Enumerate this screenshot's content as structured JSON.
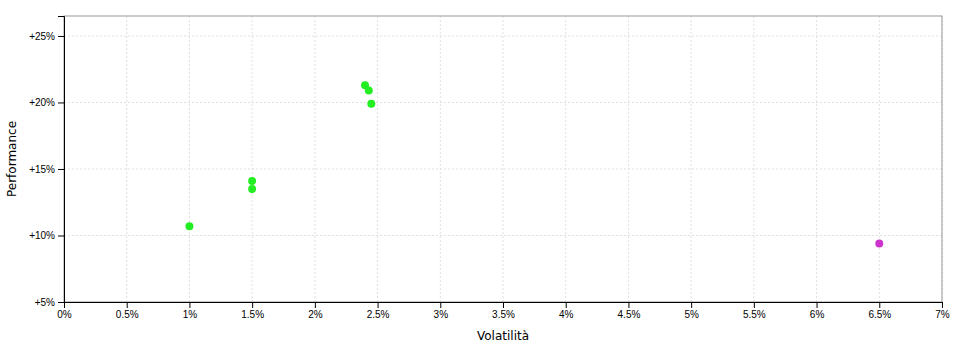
{
  "chart_data": {
    "type": "scatter",
    "xlabel": "Volatilità",
    "ylabel": "Performance",
    "xlim": [
      0.0,
      0.07
    ],
    "ylim": [
      0.05,
      0.265
    ],
    "xticks": [
      {
        "value": 0.0,
        "label": "0%"
      },
      {
        "value": 0.005,
        "label": "0.5%"
      },
      {
        "value": 0.01,
        "label": "1%"
      },
      {
        "value": 0.015,
        "label": "1.5%"
      },
      {
        "value": 0.02,
        "label": "2%"
      },
      {
        "value": 0.025,
        "label": "2.5%"
      },
      {
        "value": 0.03,
        "label": "3%"
      },
      {
        "value": 0.035,
        "label": "3.5%"
      },
      {
        "value": 0.04,
        "label": "4%"
      },
      {
        "value": 0.045,
        "label": "4.5%"
      },
      {
        "value": 0.05,
        "label": "5%"
      },
      {
        "value": 0.055,
        "label": "5.5%"
      },
      {
        "value": 0.06,
        "label": "6%"
      },
      {
        "value": 0.065,
        "label": "6.5%"
      },
      {
        "value": 0.07,
        "label": "7%"
      }
    ],
    "yticks": [
      {
        "value": 0.05,
        "label": "+5%"
      },
      {
        "value": 0.1,
        "label": "+10%"
      },
      {
        "value": 0.15,
        "label": "+15%"
      },
      {
        "value": 0.2,
        "label": "+20%"
      },
      {
        "value": 0.25,
        "label": "+25%"
      }
    ],
    "grid": true,
    "marker": "circle",
    "series": [
      {
        "color": "#22ee22",
        "x": [
          0.01,
          0.015,
          0.015,
          0.024,
          0.0243,
          0.0245
        ],
        "values": [
          0.107,
          0.141,
          0.135,
          0.213,
          0.209,
          0.199
        ]
      },
      {
        "color": "#cc33cc",
        "x": [
          0.065
        ],
        "values": [
          0.094
        ]
      }
    ]
  }
}
